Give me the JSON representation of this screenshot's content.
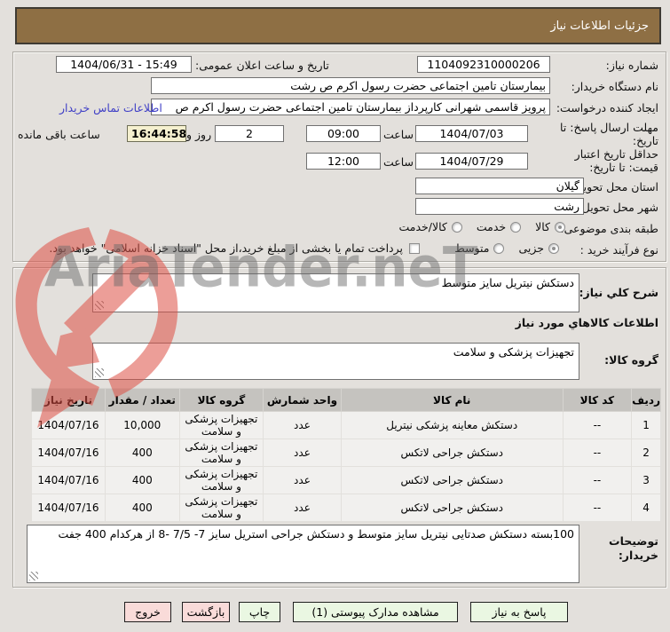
{
  "title_bar": {
    "text": "جزئیات اطلاعات نیاز"
  },
  "watermark": {
    "text": "AriaTender.neT",
    "logo": "aria-tender-shield-arrow",
    "red": "#de4f45"
  },
  "form": {
    "need_number": {
      "label": "شماره نیاز:",
      "value": "1104092310000206"
    },
    "announce_datetime": {
      "label": "تاریخ و ساعت اعلان عمومی:",
      "value": "1404/06/31 - 15:49"
    },
    "buyer_org": {
      "label": "نام دستگاه خریدار:",
      "value": "بیمارستان  تامین اجتماعی حضرت رسول اکرم ص رشت"
    },
    "request_creator": {
      "label": "ایجاد کننده درخواست:",
      "value": "پرویز قاسمی شهرانی کارپرداز بیمارستان  تامین اجتماعی حضرت رسول اکرم ص",
      "contact_link": "اطلاعات تماس خریدار"
    },
    "reply_deadline": {
      "label_line1": "مهلت ارسال پاسخ: تا",
      "label_line2": "تاریخ:",
      "date": "1404/07/03",
      "hour_label": "ساعت",
      "time": "09:00",
      "days_value": "2",
      "days_label": "روز و",
      "countdown": "16:44:58",
      "remaining_label": "ساعت باقی مانده"
    },
    "price_validity": {
      "label_line1": "حداقل تاریخ اعتبار",
      "label_line2": "قیمت: تا تاریخ:",
      "date": "1404/07/29",
      "hour_label": "ساعت",
      "time": "12:00"
    },
    "province": {
      "label": "استان محل تحویل:",
      "value": "گیلان"
    },
    "city": {
      "label": "شهر محل تحویل:",
      "value": "رشت"
    },
    "classification": {
      "label": "طبقه بندی موضوعی:",
      "options": [
        {
          "label": "کالا",
          "selected": true
        },
        {
          "label": "خدمت",
          "selected": false
        },
        {
          "label": "کالا/خدمت",
          "selected": false
        }
      ]
    },
    "process_type": {
      "label": "نوع فرآیند خرید :",
      "options": [
        {
          "label": "جزیی",
          "selected": true
        },
        {
          "label": "متوسط",
          "selected": false
        }
      ],
      "treasury_checkbox": {
        "label": "پرداخت تمام یا بخشی از مبلغ خرید،از محل \"اسناد خزانه اسلامی\" خواهد بود.",
        "checked": false
      }
    }
  },
  "need_description": {
    "label": "شرح کلي نیاز:",
    "value": "دستکش نیتریل سایز متوسط"
  },
  "goods_section": {
    "header": "اطلاعات کالاهاي مورد نیاز",
    "group_label": "گروه کالا:",
    "group_value": "تجهیزات پزشکی و سلامت"
  },
  "table": {
    "headers": [
      "ردیف",
      "کد کالا",
      "نام کالا",
      "واحد شمارش",
      "گروه کالا",
      "تعداد / مقدار",
      "تاریخ نیاز"
    ],
    "rows": [
      [
        "1",
        "--",
        "دستکش معاینه پزشکی نیتریل",
        "عدد",
        "تجهیزات پزشکی و سلامت",
        "10,000",
        "1404/07/16"
      ],
      [
        "2",
        "--",
        "دستکش جراحی لاتکس",
        "عدد",
        "تجهیزات پزشکی و سلامت",
        "400",
        "1404/07/16"
      ],
      [
        "3",
        "--",
        "دستکش جراحی لاتکس",
        "عدد",
        "تجهیزات پزشکی و سلامت",
        "400",
        "1404/07/16"
      ],
      [
        "4",
        "--",
        "دستکش جراحی لاتکس",
        "عدد",
        "تجهیزات پزشکی و سلامت",
        "400",
        "1404/07/16"
      ]
    ]
  },
  "buyer_notes": {
    "label_line1": "توضیحات",
    "label_line2": "خریدار:",
    "value": "100بسته دستکش صدتایی نیتریل سایز متوسط   و دستکش جراحی استریل سایز 7- 7/5 -8 از هرکدام 400 جفت"
  },
  "buttons": {
    "reply": "پاسخ به نیاز",
    "view_docs": "مشاهده مدارک پیوستی (1)",
    "print": "چاپ",
    "back": "بازگشت",
    "exit": "خروج"
  },
  "colors": {
    "title_bar_bg": "#8e6f44",
    "countdown_bg": "#f5f0cf",
    "link_blue": "#3f3fc6",
    "button_green": "#eaf7e2",
    "button_pink": "#f9dbd9",
    "table_header_bg": "#c5c3bf",
    "watermark_red": "#de4f45"
  }
}
